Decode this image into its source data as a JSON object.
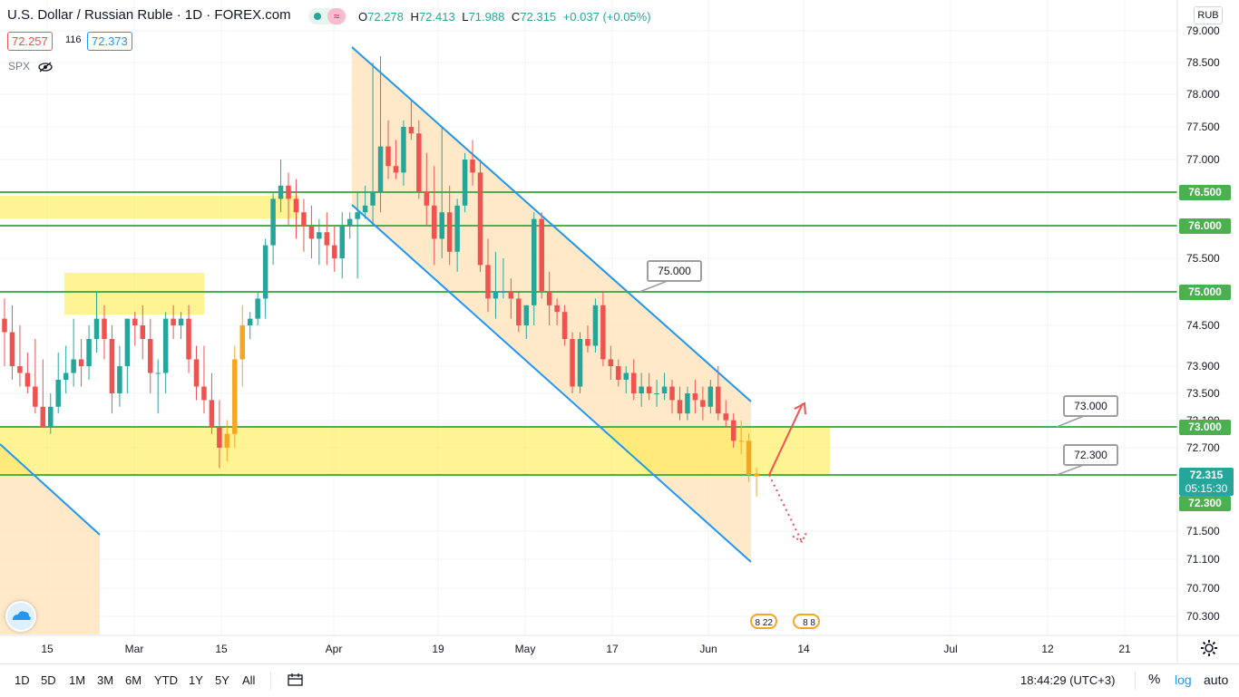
{
  "header": {
    "title": "U.S. Dollar / Russian Ruble · 1D · FOREX.com",
    "ohlc": {
      "o_key": "O",
      "o": "72.278",
      "h_key": "H",
      "h": "72.413",
      "l_key": "L",
      "l": "71.988",
      "c_key": "C",
      "c": "72.315",
      "change": "+0.037 (+0.05%)"
    },
    "bid": "72.257",
    "spread": "116",
    "ask": "72.373",
    "indicator": "SPX",
    "pink_symbol": "≈"
  },
  "currency_button": "RUB",
  "axis_labels": {
    "price_ticks": [
      "79.000",
      "78.500",
      "78.000",
      "77.500",
      "77.000",
      "76.500",
      "76.000",
      "75.500",
      "75.000",
      "74.500",
      "73.900",
      "73.500",
      "73.100",
      "72.700",
      "72.300",
      "71.500",
      "71.100",
      "70.700",
      "70.300"
    ],
    "time_ticks": [
      "15",
      "Mar",
      "15",
      "Apr",
      "19",
      "May",
      "17",
      "Jun",
      "14",
      "Jul",
      "12",
      "21"
    ]
  },
  "price_labels": {
    "l76500": "76.500",
    "l76000": "76.000",
    "l75000": "75.000",
    "l73000": "73.000",
    "last_price": "72.315",
    "countdown": "05:15:30",
    "l72300": "72.300"
  },
  "callouts": {
    "c75000": "75.000",
    "c73000": "73.000",
    "c72300": "72.300"
  },
  "event_flags": [
    "8 22",
    "8 8"
  ],
  "toolbar": {
    "ranges": [
      "1D",
      "5D",
      "1M",
      "3M",
      "6M",
      "YTD",
      "1Y",
      "5Y",
      "All"
    ],
    "clock": "18:44:29 (UTC+3)",
    "percent": "%",
    "log": "log",
    "auto": "auto"
  },
  "colors": {
    "up": "#26a69a",
    "down": "#ef5350",
    "level_line": "#4caf50",
    "channel_line": "#2196f3",
    "zone": "#ffeb3b",
    "channel_fill": "#ffe0b2"
  },
  "chart_data": {
    "type": "candlestick",
    "symbol": "USD/RUB",
    "timeframe": "1D",
    "ylim": [
      70.1,
      79.2
    ],
    "x_ticks": [
      "15",
      "Mar",
      "15",
      "Apr",
      "19",
      "May",
      "17",
      "Jun",
      "14",
      "Jul",
      "12",
      "21"
    ],
    "horizontal_levels": [
      76.5,
      76.0,
      75.0,
      73.0,
      72.3
    ],
    "support_resistance_zones": [
      [
        76.1,
        76.45
      ],
      [
        74.65,
        75.3
      ],
      [
        72.3,
        73.0
      ]
    ],
    "descending_channel": {
      "upper": [
        [
          78.65,
          "Apr 5"
        ],
        [
          73.35,
          "Jun 8"
        ]
      ],
      "lower": [
        [
          76.1,
          "Apr 3"
        ],
        [
          71.05,
          "Jun 8"
        ]
      ]
    },
    "forecast": {
      "up_target": 73.35,
      "down_target": 71.35,
      "pivot": 72.3
    },
    "candles": [
      [
        74.6,
        74.9,
        73.9,
        74.4
      ],
      [
        74.4,
        74.8,
        73.7,
        73.9
      ],
      [
        73.9,
        74.5,
        73.6,
        73.8
      ],
      [
        73.8,
        74.1,
        73.5,
        73.6
      ],
      [
        73.6,
        74.3,
        73.2,
        73.3
      ],
      [
        73.3,
        74.0,
        73.0,
        73.0
      ],
      [
        73.0,
        73.5,
        72.9,
        73.3
      ],
      [
        73.3,
        74.1,
        73.2,
        73.7
      ],
      [
        73.7,
        74.2,
        73.5,
        73.8
      ],
      [
        73.8,
        74.6,
        73.6,
        74.0
      ],
      [
        74.0,
        74.3,
        73.6,
        73.9
      ],
      [
        73.9,
        74.5,
        73.7,
        74.3
      ],
      [
        74.3,
        75.0,
        74.1,
        74.6
      ],
      [
        74.6,
        74.8,
        74.0,
        74.3
      ],
      [
        74.3,
        74.5,
        73.2,
        73.5
      ],
      [
        73.5,
        74.2,
        73.3,
        73.9
      ],
      [
        73.9,
        74.6,
        73.5,
        74.6
      ],
      [
        74.6,
        74.7,
        74.2,
        74.5
      ],
      [
        74.5,
        74.8,
        74.0,
        74.3
      ],
      [
        74.3,
        74.6,
        73.5,
        73.8
      ],
      [
        73.8,
        74.0,
        73.2,
        73.8
      ],
      [
        73.8,
        74.7,
        73.5,
        74.6
      ],
      [
        74.6,
        74.8,
        74.3,
        74.5
      ],
      [
        74.5,
        74.7,
        74.3,
        74.6
      ],
      [
        74.6,
        74.8,
        73.8,
        74.0
      ],
      [
        74.0,
        74.2,
        73.4,
        73.6
      ],
      [
        73.6,
        74.2,
        73.2,
        73.4
      ],
      [
        73.4,
        73.8,
        72.9,
        73.0
      ],
      [
        73.0,
        73.4,
        72.4,
        72.7
      ],
      [
        72.7,
        73.1,
        72.5,
        72.9
      ],
      [
        72.9,
        74.2,
        72.7,
        74.0
      ],
      [
        74.0,
        74.8,
        73.6,
        74.5
      ],
      [
        74.5,
        74.7,
        74.3,
        74.6
      ],
      [
        74.6,
        75.0,
        74.5,
        74.9
      ],
      [
        74.9,
        75.8,
        74.6,
        75.7
      ],
      [
        75.7,
        76.5,
        75.4,
        76.4
      ],
      [
        76.4,
        77.0,
        76.2,
        76.6
      ],
      [
        76.6,
        76.8,
        76.0,
        76.4
      ],
      [
        76.4,
        76.7,
        75.8,
        76.2
      ],
      [
        76.2,
        76.4,
        75.6,
        76.0
      ],
      [
        76.0,
        76.3,
        75.5,
        75.8
      ],
      [
        75.8,
        76.1,
        75.4,
        75.9
      ],
      [
        75.9,
        76.2,
        75.4,
        75.7
      ],
      [
        75.7,
        76.0,
        75.3,
        75.5
      ],
      [
        75.5,
        76.2,
        75.2,
        76.0
      ],
      [
        76.0,
        76.2,
        75.8,
        76.1
      ],
      [
        76.1,
        76.5,
        75.2,
        76.2
      ],
      [
        76.2,
        76.6,
        76.1,
        76.3
      ],
      [
        76.3,
        78.5,
        76.0,
        76.5
      ],
      [
        76.5,
        78.6,
        76.2,
        77.2
      ],
      [
        77.2,
        77.6,
        76.7,
        76.9
      ],
      [
        76.9,
        77.3,
        76.7,
        76.8
      ],
      [
        76.8,
        77.6,
        76.6,
        77.5
      ],
      [
        77.5,
        77.9,
        77.3,
        77.4
      ],
      [
        77.4,
        77.6,
        76.4,
        76.5
      ],
      [
        76.5,
        77.1,
        76.0,
        76.3
      ],
      [
        76.3,
        76.9,
        75.4,
        75.8
      ],
      [
        75.8,
        77.5,
        75.5,
        76.2
      ],
      [
        76.2,
        76.6,
        75.4,
        75.6
      ],
      [
        75.6,
        76.4,
        75.3,
        76.3
      ],
      [
        76.3,
        77.1,
        76.2,
        77.0
      ],
      [
        77.0,
        77.3,
        76.6,
        76.8
      ],
      [
        76.8,
        77.0,
        75.3,
        75.4
      ],
      [
        75.4,
        75.8,
        74.7,
        74.9
      ],
      [
        74.9,
        75.6,
        74.6,
        75.0
      ],
      [
        75.0,
        75.5,
        74.9,
        75.0
      ],
      [
        75.0,
        75.2,
        74.6,
        74.9
      ],
      [
        74.9,
        75.0,
        74.4,
        74.5
      ],
      [
        74.5,
        74.8,
        74.3,
        74.8
      ],
      [
        74.8,
        76.2,
        74.5,
        76.1
      ],
      [
        76.1,
        76.2,
        74.9,
        75.0
      ],
      [
        75.0,
        75.3,
        74.5,
        74.8
      ],
      [
        74.8,
        74.9,
        74.5,
        74.7
      ],
      [
        74.7,
        74.8,
        74.2,
        74.3
      ],
      [
        74.3,
        74.4,
        73.5,
        73.6
      ],
      [
        73.6,
        74.4,
        73.5,
        74.3
      ],
      [
        74.3,
        74.5,
        74.1,
        74.2
      ],
      [
        74.2,
        74.9,
        74.1,
        74.8
      ],
      [
        74.8,
        75.0,
        73.9,
        74.0
      ],
      [
        74.0,
        74.2,
        73.7,
        73.9
      ],
      [
        73.9,
        74.0,
        73.6,
        73.7
      ],
      [
        73.7,
        73.9,
        73.5,
        73.8
      ],
      [
        73.8,
        74.0,
        73.4,
        73.5
      ],
      [
        73.5,
        73.8,
        73.3,
        73.6
      ],
      [
        73.6,
        73.8,
        73.4,
        73.5
      ],
      [
        73.5,
        73.7,
        73.3,
        73.5
      ],
      [
        73.5,
        73.8,
        73.4,
        73.6
      ],
      [
        73.6,
        73.7,
        73.2,
        73.4
      ],
      [
        73.4,
        73.6,
        73.1,
        73.2
      ],
      [
        73.2,
        73.6,
        73.1,
        73.5
      ],
      [
        73.5,
        73.7,
        73.2,
        73.4
      ],
      [
        73.4,
        73.6,
        73.1,
        73.3
      ],
      [
        73.3,
        73.7,
        73.2,
        73.6
      ],
      [
        73.6,
        73.9,
        73.1,
        73.2
      ],
      [
        73.2,
        73.4,
        73.0,
        73.1
      ],
      [
        73.1,
        73.2,
        72.7,
        72.8
      ],
      [
        72.8,
        73.1,
        72.6,
        72.8
      ],
      [
        72.8,
        72.9,
        72.2,
        72.3
      ],
      [
        72.28,
        72.41,
        71.99,
        72.32
      ]
    ]
  }
}
